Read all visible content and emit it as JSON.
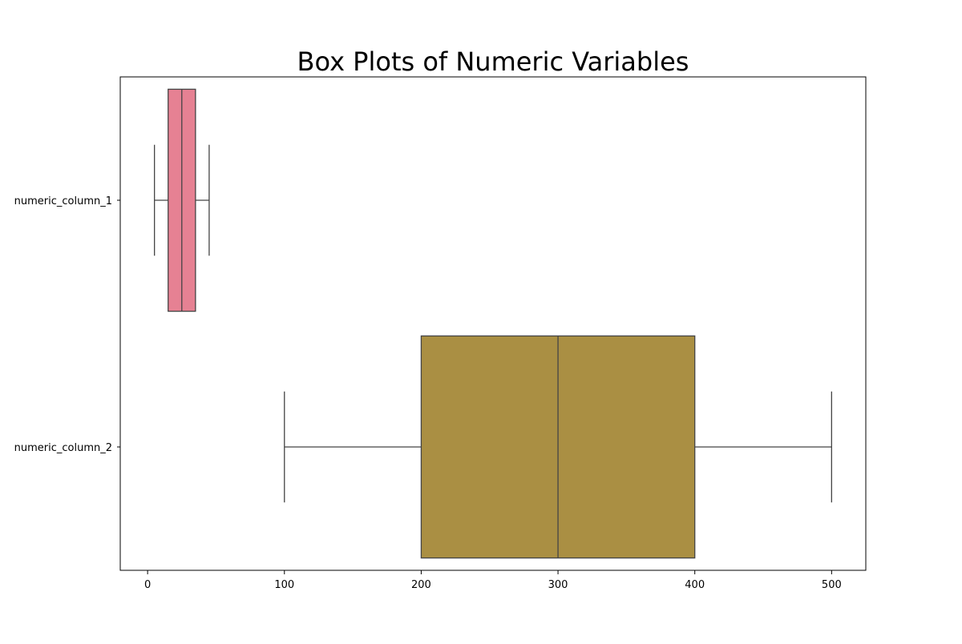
{
  "chart_data": {
    "type": "boxplot",
    "orientation": "horizontal",
    "title": "Box Plots of Numeric Variables",
    "xlabel": "",
    "ylabel": "",
    "xlim": [
      -20,
      525
    ],
    "x_ticks": [
      0,
      100,
      200,
      300,
      400,
      500
    ],
    "x_tick_labels": [
      "0",
      "100",
      "200",
      "300",
      "400",
      "500"
    ],
    "grid": false,
    "categories": [
      "numeric_column_1",
      "numeric_column_2"
    ],
    "series": [
      {
        "category": "numeric_column_1",
        "whisker_low": 5,
        "q1": 15,
        "median": 25,
        "q3": 35,
        "whisker_high": 45,
        "color": "#e68193"
      },
      {
        "category": "numeric_column_2",
        "whisker_low": 100,
        "q1": 200,
        "median": 300,
        "q3": 400,
        "whisker_high": 500,
        "color": "#aa8f43"
      }
    ]
  }
}
